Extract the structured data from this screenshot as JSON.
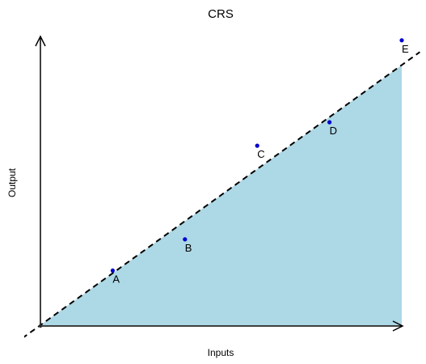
{
  "chart_data": {
    "type": "area",
    "title": "CRS",
    "xlabel": "Inputs",
    "ylabel": "Output",
    "xlim": [
      0,
      10
    ],
    "ylim": [
      0,
      7.4
    ],
    "grid": false,
    "legend": "none",
    "frontier": {
      "style": "dashed",
      "color": "#000000",
      "x": [
        -0.5,
        10.5
      ],
      "y": [
        -0.333,
        7.0
      ]
    },
    "feasible_region": {
      "fill": "#add8e6",
      "x": [
        0,
        10,
        10
      ],
      "y": [
        0,
        6.667,
        0
      ]
    },
    "points": {
      "color": "#0000cd",
      "labels": [
        "A",
        "B",
        "C",
        "D",
        "E"
      ],
      "x": [
        2,
        4,
        6,
        8,
        10
      ],
      "y": [
        1.4,
        2.2,
        4.6,
        5.2,
        7.3
      ]
    }
  }
}
